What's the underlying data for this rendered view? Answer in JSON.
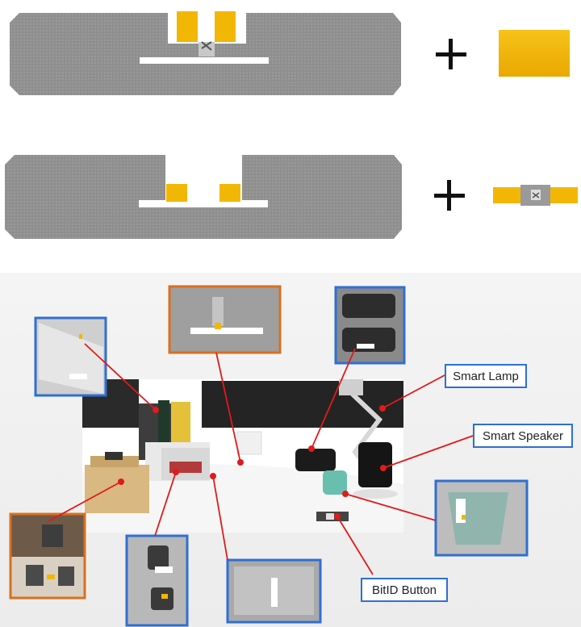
{
  "labels": {
    "smart_lamp": "Smart Lamp",
    "smart_speaker": "Smart Speaker",
    "bitid_button": "BitID Button"
  },
  "symbols": {
    "plus": "+"
  },
  "colors": {
    "antenna_gray": "#8f8f8f",
    "pad_yellow": "#f2b705",
    "border_blue": "#2f6fd1",
    "border_orange": "#d9701f",
    "leader_red": "#e01b1b"
  }
}
